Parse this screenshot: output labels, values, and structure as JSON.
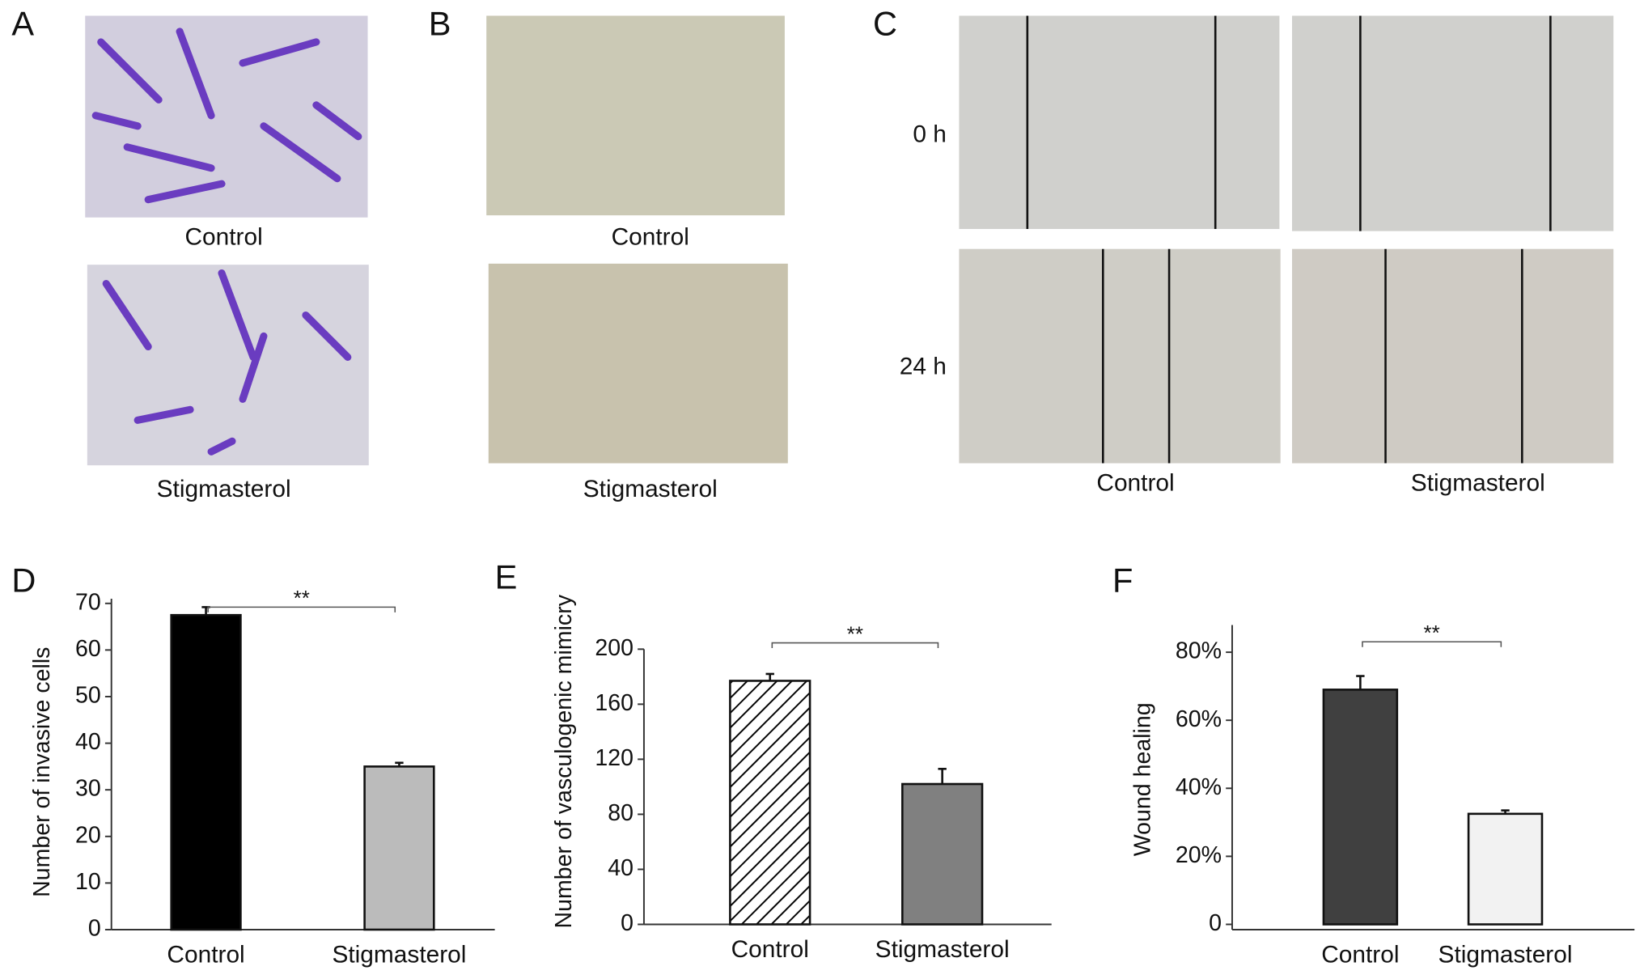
{
  "figure": {
    "A": {
      "label": "A",
      "captions": [
        "Control",
        "Stigmasterol"
      ]
    },
    "B": {
      "label": "B",
      "captions": [
        "Control",
        "Stigmasterol"
      ]
    },
    "C": {
      "label": "C",
      "rows": [
        "0 h",
        "24 h"
      ],
      "columns": [
        "Control",
        "Stigmasterol"
      ]
    }
  },
  "chart_data": [
    {
      "type": "bar",
      "label": "D",
      "y_label": "Number of invasive cells",
      "categories": [
        "Control",
        "Stigmasterol"
      ],
      "values": [
        67.5,
        35
      ],
      "errors": [
        1.7,
        0.8
      ],
      "colors": [
        "#000000",
        "#bbbbbb"
      ],
      "patterns": [
        "solid",
        "solid"
      ],
      "ylim": [
        0,
        71
      ],
      "yticks": [
        0,
        10,
        20,
        30,
        40,
        50,
        60,
        70
      ],
      "annotation": "**"
    },
    {
      "type": "bar",
      "label": "E",
      "y_label": "Number of vasculogenic mimicry",
      "categories": [
        "Control",
        "Stigmasterol"
      ],
      "values": [
        177,
        102
      ],
      "errors": [
        5,
        11
      ],
      "colors": [
        "#ffffff",
        "#808080"
      ],
      "patterns": [
        "hatch",
        "solid"
      ],
      "ylim": [
        0,
        200
      ],
      "yticks": [
        0,
        40,
        80,
        120,
        160,
        200
      ],
      "annotation": "**"
    },
    {
      "type": "bar",
      "label": "F",
      "y_label": "Wound healing",
      "categories": [
        "Control",
        "Stigmasterol"
      ],
      "values": [
        69,
        32.5
      ],
      "errors": [
        4,
        1
      ],
      "colors": [
        "#404040",
        "#f2f2f2"
      ],
      "patterns": [
        "solid",
        "solid"
      ],
      "ylim": [
        0,
        88
      ],
      "yticks": [
        0,
        {
          "value": 20,
          "label": "20%"
        },
        {
          "value": 40,
          "label": "40%"
        },
        {
          "value": 60,
          "label": "60%"
        },
        {
          "value": 80,
          "label": "80%"
        }
      ],
      "annotation": "**"
    }
  ]
}
